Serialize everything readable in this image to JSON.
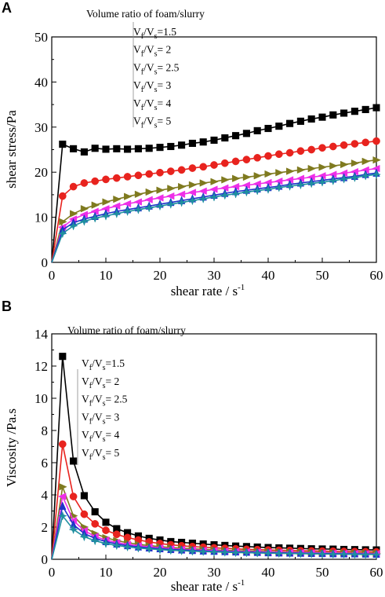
{
  "panels": [
    {
      "letter": "A"
    },
    {
      "letter": "B"
    }
  ],
  "chart_data": [
    {
      "type": "line",
      "panel": "A",
      "xlabel": "shear rate / s",
      "xlabel_sup": "-1",
      "ylabel": "shear stress/Pa",
      "xlim": [
        0,
        60
      ],
      "ylim": [
        0,
        50
      ],
      "xticks": [
        0,
        10,
        20,
        30,
        40,
        50,
        60
      ],
      "yticks": [
        0,
        10,
        20,
        30,
        40,
        50
      ],
      "legend_title": "Volume ratio of foam/slurry",
      "legend_placement": "top-center",
      "x": [
        0,
        2,
        4,
        6,
        8,
        10,
        12,
        14,
        16,
        18,
        20,
        22,
        24,
        26,
        28,
        30,
        32,
        34,
        36,
        38,
        40,
        42,
        44,
        46,
        48,
        50,
        52,
        54,
        56,
        58,
        60
      ],
      "series": [
        {
          "name": "Vf/Vs=1.5",
          "ratio": "1.5",
          "color": "#000000",
          "marker": "square",
          "values": [
            0,
            26.2,
            25.2,
            24.5,
            25.3,
            25.1,
            25.2,
            25.1,
            25.2,
            25.3,
            25.5,
            25.7,
            26.0,
            26.4,
            26.7,
            27.1,
            27.6,
            28.1,
            28.6,
            29.2,
            29.7,
            30.2,
            30.8,
            31.3,
            31.8,
            32.2,
            32.7,
            33.1,
            33.5,
            33.9,
            34.3
          ]
        },
        {
          "name": "Vf/Vs= 2",
          "ratio": " 2",
          "color": "#e8231e",
          "marker": "circle",
          "values": [
            0,
            14.7,
            16.8,
            17.6,
            18.0,
            18.4,
            18.7,
            19.0,
            19.3,
            19.6,
            19.9,
            20.2,
            20.5,
            20.9,
            21.2,
            21.6,
            22.0,
            22.4,
            22.8,
            23.2,
            23.6,
            24.0,
            24.3,
            24.7,
            25.0,
            25.4,
            25.7,
            26.0,
            26.3,
            26.6,
            26.9
          ]
        },
        {
          "name": "Vf/Vs= 2.5",
          "ratio": " 2.5",
          "color": "#7f7a1f",
          "marker": "triangle-right",
          "values": [
            0,
            9.0,
            10.8,
            11.9,
            12.7,
            13.4,
            14.0,
            14.6,
            15.1,
            15.6,
            16.0,
            16.4,
            16.8,
            17.2,
            17.6,
            17.9,
            18.3,
            18.6,
            18.9,
            19.2,
            19.6,
            19.9,
            20.2,
            20.5,
            20.8,
            21.1,
            21.4,
            21.7,
            22.0,
            22.4,
            22.7
          ]
        },
        {
          "name": "Vf/Vs= 3",
          "ratio": " 3",
          "color": "#ee2ee8",
          "marker": "triangle-left",
          "values": [
            0,
            7.8,
            9.6,
            10.6,
            11.3,
            11.9,
            12.5,
            13.0,
            13.4,
            13.9,
            14.3,
            14.7,
            15.1,
            15.5,
            15.8,
            16.2,
            16.5,
            16.8,
            17.1,
            17.4,
            17.7,
            18.0,
            18.3,
            18.6,
            18.9,
            19.2,
            19.5,
            19.8,
            20.1,
            20.5,
            20.8
          ]
        },
        {
          "name": "Vf/Vs= 4",
          "ratio": " 4",
          "color": "#1f33c9",
          "marker": "triangle-up",
          "values": [
            0,
            7.2,
            8.8,
            9.6,
            10.2,
            10.8,
            11.3,
            11.7,
            12.1,
            12.5,
            12.9,
            13.3,
            13.7,
            14.1,
            14.5,
            14.9,
            15.3,
            15.7,
            16.0,
            16.3,
            16.6,
            16.9,
            17.3,
            17.6,
            17.9,
            18.2,
            18.5,
            18.8,
            19.1,
            19.5,
            19.8
          ]
        },
        {
          "name": "Vf/Vs= 5",
          "ratio": " 5",
          "color": "#1f8fa0",
          "marker": "star",
          "values": [
            0,
            6.4,
            8.1,
            9.1,
            9.8,
            10.3,
            10.8,
            11.3,
            11.7,
            12.1,
            12.5,
            12.9,
            13.3,
            13.7,
            14.1,
            14.5,
            14.9,
            15.2,
            15.6,
            15.9,
            16.2,
            16.6,
            16.9,
            17.2,
            17.5,
            17.8,
            18.1,
            18.5,
            18.8,
            19.2,
            19.5
          ]
        }
      ]
    },
    {
      "type": "line",
      "panel": "B",
      "xlabel": "shear rate / s",
      "xlabel_sup": "-1",
      "ylabel": "Viscosity /Pa.s",
      "xlim": [
        0,
        60
      ],
      "ylim": [
        0,
        14
      ],
      "xticks": [
        0,
        10,
        20,
        30,
        40,
        50,
        60
      ],
      "yticks": [
        0,
        2,
        4,
        6,
        8,
        10,
        12,
        14
      ],
      "legend_title": "Volume ratio of foam/slurry",
      "legend_placement": "top-center",
      "x": [
        0,
        2,
        4,
        6,
        8,
        10,
        12,
        14,
        16,
        18,
        20,
        22,
        24,
        26,
        28,
        30,
        32,
        34,
        36,
        38,
        40,
        42,
        44,
        46,
        48,
        50,
        52,
        54,
        56,
        58,
        60
      ],
      "series": [
        {
          "name": "Vf/Vs=1.5",
          "ratio": "1.5",
          "color": "#000000",
          "marker": "square",
          "values": [
            0,
            12.6,
            6.1,
            3.95,
            2.95,
            2.3,
            1.9,
            1.65,
            1.45,
            1.3,
            1.2,
            1.1,
            1.05,
            1.0,
            0.95,
            0.9,
            0.86,
            0.82,
            0.79,
            0.76,
            0.73,
            0.71,
            0.69,
            0.67,
            0.65,
            0.64,
            0.63,
            0.61,
            0.6,
            0.59,
            0.58
          ]
        },
        {
          "name": "Vf/Vs= 2",
          "ratio": " 2",
          "color": "#e8231e",
          "marker": "circle",
          "values": [
            0,
            7.15,
            3.9,
            2.8,
            2.2,
            1.8,
            1.55,
            1.35,
            1.2,
            1.08,
            0.98,
            0.9,
            0.84,
            0.79,
            0.75,
            0.71,
            0.68,
            0.65,
            0.62,
            0.6,
            0.58,
            0.56,
            0.55,
            0.53,
            0.52,
            0.51,
            0.5,
            0.49,
            0.48,
            0.47,
            0.46
          ]
        },
        {
          "name": "Vf/Vs= 2.5",
          "ratio": " 2.5",
          "color": "#7f7a1f",
          "marker": "triangle-right",
          "values": [
            0,
            4.5,
            2.7,
            2.0,
            1.6,
            1.34,
            1.16,
            1.03,
            0.93,
            0.85,
            0.79,
            0.73,
            0.69,
            0.65,
            0.62,
            0.59,
            0.56,
            0.54,
            0.52,
            0.5,
            0.48,
            0.47,
            0.45,
            0.44,
            0.43,
            0.42,
            0.41,
            0.4,
            0.39,
            0.38,
            0.37
          ]
        },
        {
          "name": "Vf/Vs= 3",
          "ratio": " 3",
          "color": "#ee2ee8",
          "marker": "triangle-left",
          "values": [
            0,
            3.9,
            2.4,
            1.78,
            1.42,
            1.2,
            1.04,
            0.93,
            0.84,
            0.77,
            0.71,
            0.66,
            0.62,
            0.59,
            0.56,
            0.54,
            0.51,
            0.49,
            0.47,
            0.46,
            0.44,
            0.43,
            0.42,
            0.41,
            0.4,
            0.39,
            0.38,
            0.37,
            0.36,
            0.35,
            0.34
          ]
        },
        {
          "name": "Vf/Vs= 4",
          "ratio": " 4",
          "color": "#1f33c9",
          "marker": "triangle-up",
          "values": [
            0,
            3.3,
            2.15,
            1.6,
            1.3,
            1.1,
            0.95,
            0.85,
            0.77,
            0.71,
            0.66,
            0.61,
            0.58,
            0.55,
            0.52,
            0.5,
            0.48,
            0.46,
            0.44,
            0.43,
            0.41,
            0.4,
            0.39,
            0.38,
            0.37,
            0.36,
            0.35,
            0.34,
            0.34,
            0.33,
            0.32
          ]
        },
        {
          "name": "Vf/Vs= 5",
          "ratio": " 5",
          "color": "#1f8fa0",
          "marker": "star",
          "values": [
            0,
            2.7,
            1.85,
            1.4,
            1.15,
            0.98,
            0.86,
            0.77,
            0.7,
            0.65,
            0.6,
            0.56,
            0.53,
            0.5,
            0.48,
            0.46,
            0.44,
            0.42,
            0.41,
            0.39,
            0.38,
            0.37,
            0.36,
            0.35,
            0.34,
            0.33,
            0.32,
            0.32,
            0.31,
            0.3,
            0.3
          ]
        }
      ]
    }
  ]
}
